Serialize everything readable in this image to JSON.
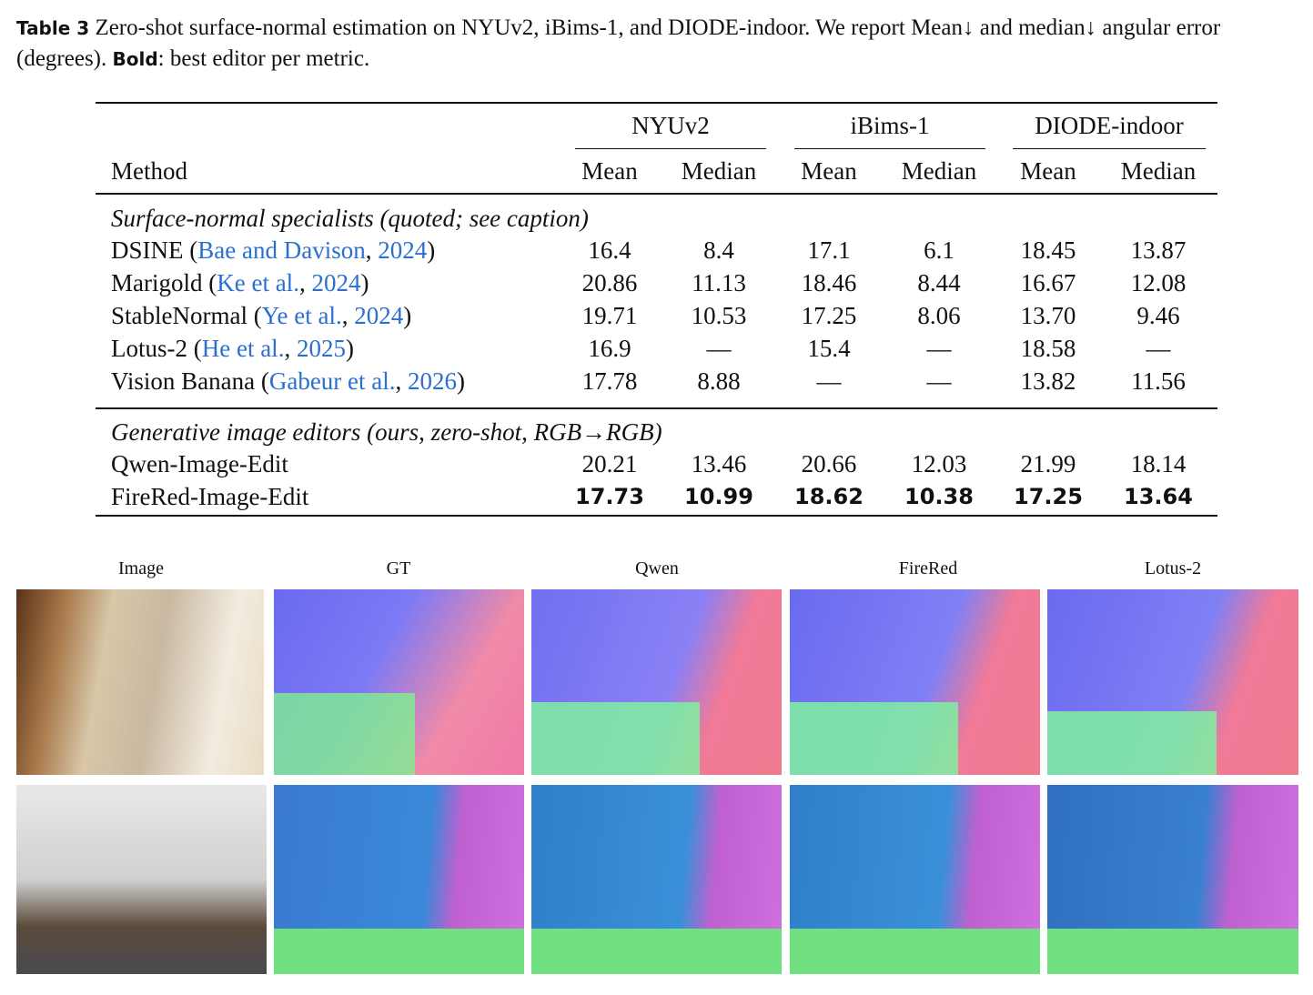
{
  "caption": {
    "label": "Table 3",
    "text": "Zero-shot surface-normal estimation on NYUv2, iBims-1, and DIODE-indoor. We report Mean↓ and median↓ angular error (degrees).",
    "bold_word": "Bold",
    "bold_text": ": best editor per metric."
  },
  "table": {
    "method_header": "Method",
    "groups": [
      "NYUv2",
      "iBims-1",
      "DIODE-indoor"
    ],
    "subheaders": [
      "Mean",
      "Median",
      "Mean",
      "Median",
      "Mean",
      "Median"
    ],
    "sections": [
      {
        "title": "Surface-normal specialists (quoted; see caption)",
        "rows": [
          {
            "method": [
              "DSINE (",
              "Bae and Davison",
              ", ",
              "2024",
              ")"
            ],
            "cells": [
              "16.4",
              "8.4",
              "17.1",
              "6.1",
              "18.45",
              "13.87"
            ]
          },
          {
            "method": [
              "Marigold (",
              "Ke et al.",
              ", ",
              "2024",
              ")"
            ],
            "cells": [
              "20.86",
              "11.13",
              "18.46",
              "8.44",
              "16.67",
              "12.08"
            ]
          },
          {
            "method": [
              "StableNormal (",
              "Ye et al.",
              ", ",
              "2024",
              ")"
            ],
            "cells": [
              "19.71",
              "10.53",
              "17.25",
              "8.06",
              "13.70",
              "9.46"
            ]
          },
          {
            "method": [
              "Lotus-2 (",
              "He et al.",
              ", ",
              "2025",
              ")"
            ],
            "cells": [
              "16.9",
              "—",
              "15.4",
              "—",
              "18.58",
              "—"
            ]
          },
          {
            "method": [
              "Vision Banana (",
              "Gabeur et al.",
              ", ",
              "2026",
              ")"
            ],
            "cells": [
              "17.78",
              "8.88",
              "—",
              "—",
              "13.82",
              "11.56"
            ]
          }
        ]
      },
      {
        "title": "Generative image editors (ours, zero-shot, RGB→RGB)",
        "rows": [
          {
            "method": [
              "Qwen-Image-Edit"
            ],
            "cells": [
              "20.21",
              "13.46",
              "20.66",
              "12.03",
              "21.99",
              "18.14"
            ]
          },
          {
            "method": [
              "FireRed-Image-Edit"
            ],
            "cells": [
              "17.73",
              "10.99",
              "18.62",
              "10.38",
              "17.25",
              "13.64"
            ],
            "bold": true
          }
        ]
      }
    ]
  },
  "figure": {
    "columns": [
      "Image",
      "GT",
      "Qwen",
      "FireRed",
      "Lotus-2"
    ]
  }
}
